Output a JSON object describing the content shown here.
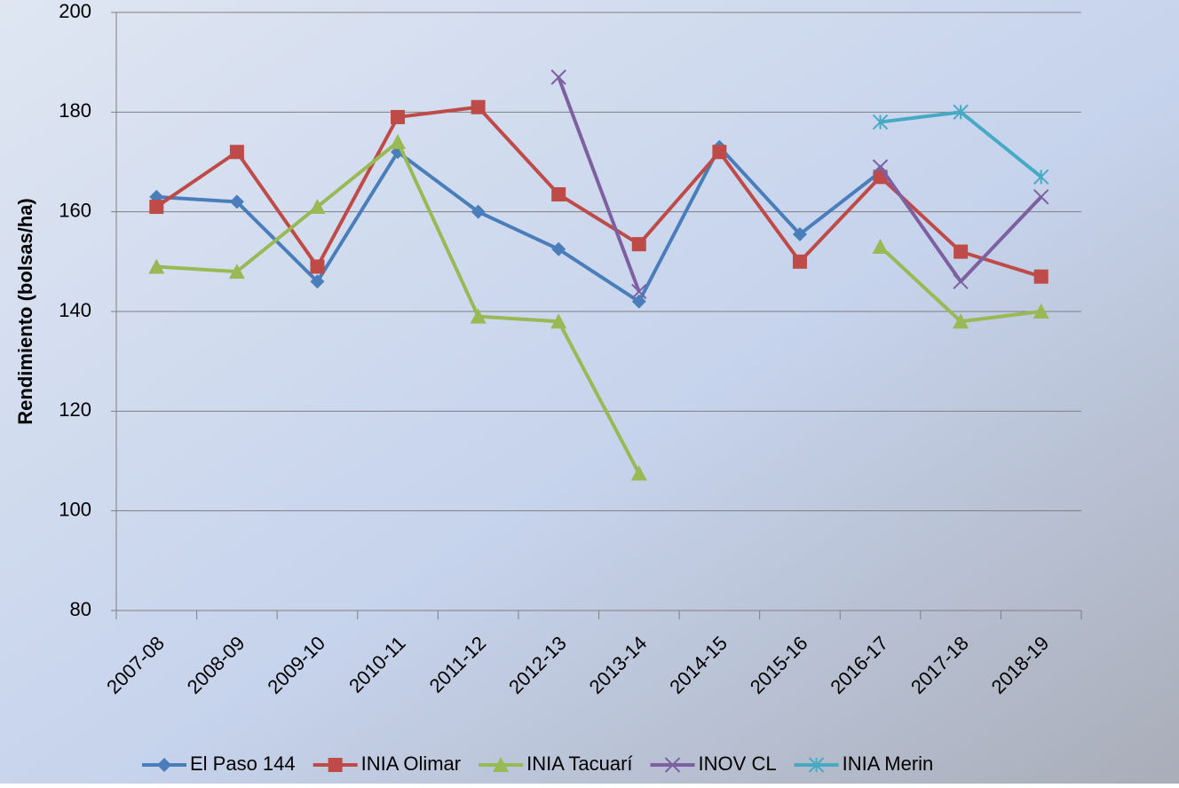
{
  "chart_data": {
    "type": "line",
    "y_label": "Rendimiento (bolsas/ha)",
    "categories": [
      "2007-08",
      "2008-09",
      "2009-10",
      "2010-11",
      "2011-12",
      "2012-13",
      "2013-14",
      "2014-15",
      "2015-16",
      "2016-17",
      "2017-18",
      "2018-19"
    ],
    "series": [
      {
        "name": "El Paso 144",
        "color": "#4a7ebb",
        "marker": "diamond",
        "values": [
          163,
          162,
          146,
          172,
          160,
          152.5,
          142,
          173,
          155.5,
          168,
          null,
          null
        ]
      },
      {
        "name": "INIA Olimar",
        "color": "#be4b48",
        "marker": "square",
        "values": [
          161,
          172,
          149,
          179,
          181,
          163.5,
          153.5,
          172,
          150,
          167,
          152,
          147
        ]
      },
      {
        "name": "INIA Tacuarí",
        "color": "#98b954",
        "marker": "triangle",
        "values": [
          149,
          148,
          161,
          174,
          139,
          138,
          107.5,
          null,
          null,
          153,
          138,
          140
        ]
      },
      {
        "name": "INOV CL",
        "color": "#7d60a0",
        "marker": "x",
        "values": [
          null,
          null,
          null,
          null,
          null,
          187,
          144,
          null,
          null,
          169,
          146,
          163
        ]
      },
      {
        "name": "INIA Merin",
        "color": "#46aac5",
        "marker": "star",
        "values": [
          null,
          null,
          null,
          null,
          null,
          null,
          null,
          null,
          null,
          178,
          180,
          167
        ]
      }
    ],
    "ylim": [
      80,
      200
    ],
    "yticks": [
      80,
      100,
      120,
      140,
      160,
      180,
      200
    ],
    "grid": true
  }
}
